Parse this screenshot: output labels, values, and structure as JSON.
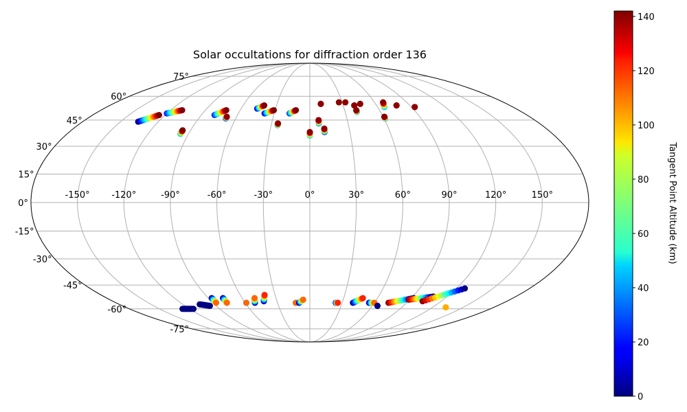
{
  "chart_data": {
    "type": "scatter",
    "projection": "mollweide",
    "title": "Solar occultations for diffraction order 136",
    "grid": true,
    "x_ticks": [
      "-150°",
      "-120°",
      "-90°",
      "-60°",
      "-30°",
      "0°",
      "30°",
      "60°",
      "90°",
      "120°",
      "150°"
    ],
    "y_ticks": [
      "75°",
      "60°",
      "45°",
      "30°",
      "15°",
      "0°",
      "-15°",
      "-30°",
      "-45°",
      "-60°",
      "-75°"
    ],
    "colorbar": {
      "label": "Tangent Point Altitude (km)",
      "range": [
        0,
        142
      ],
      "ticks": [
        "0",
        "20",
        "40",
        "60",
        "80",
        "100",
        "120",
        "140"
      ],
      "colormap": "jet"
    },
    "tracks": [
      {
        "lon0": -136,
        "lat0": 44,
        "lon1": -125,
        "lat1": 48,
        "alt0": 0,
        "alt1": 142
      },
      {
        "lon0": -120,
        "lat0": 49,
        "lon1": -110,
        "lat1": 51,
        "alt0": 20,
        "alt1": 142
      },
      {
        "lon0": -96,
        "lat0": 37,
        "lon1": -96,
        "lat1": 39,
        "alt0": 40,
        "alt1": 142
      },
      {
        "lon0": -79,
        "lat0": 48,
        "lon1": -72,
        "lat1": 51,
        "alt0": 20,
        "alt1": 142
      },
      {
        "lon0": -68,
        "lat0": 46,
        "lon1": -68,
        "lat1": 47,
        "alt0": 0,
        "alt1": 140
      },
      {
        "lon0": -46,
        "lat0": 52,
        "lon1": -41,
        "lat1": 54,
        "alt0": 10,
        "alt1": 142
      },
      {
        "lon0": -38,
        "lat0": 49,
        "lon1": -31,
        "lat1": 51,
        "alt0": 10,
        "alt1": 142
      },
      {
        "lon0": -25,
        "lat0": 42,
        "lon1": -25,
        "lat1": 43,
        "alt0": 30,
        "alt1": 140
      },
      {
        "lon0": -17,
        "lat0": 49,
        "lon1": -12,
        "lat1": 51,
        "alt0": 20,
        "alt1": 142
      },
      {
        "lon0": 0,
        "lat0": 36,
        "lon1": 0,
        "lat1": 38,
        "alt0": 40,
        "alt1": 140
      },
      {
        "lon0": 7,
        "lat0": 43,
        "lon1": 7,
        "lat1": 45,
        "alt0": 30,
        "alt1": 140
      },
      {
        "lon0": 11,
        "lat0": 38,
        "lon1": 11,
        "lat1": 40,
        "alt0": 20,
        "alt1": 140
      },
      {
        "lon0": 10,
        "lat0": 55,
        "lon1": 10,
        "lat1": 55,
        "alt0": 140,
        "alt1": 140
      },
      {
        "lon0": 27,
        "lat0": 56,
        "lon1": 27,
        "lat1": 56,
        "alt0": 30,
        "alt1": 140
      },
      {
        "lon0": 33,
        "lat0": 56,
        "lon1": 33,
        "lat1": 56,
        "alt0": 30,
        "alt1": 140
      },
      {
        "lon0": 40,
        "lat0": 50,
        "lon1": 40,
        "lat1": 51,
        "alt0": 30,
        "alt1": 140
      },
      {
        "lon0": 40,
        "lat0": 54,
        "lon1": 40,
        "lat1": 54,
        "alt0": 140,
        "alt1": 140
      },
      {
        "lon0": 46,
        "lat0": 55,
        "lon1": 46,
        "lat1": 55,
        "alt0": 140,
        "alt1": 140
      },
      {
        "lon0": 61,
        "lat0": 46,
        "lon1": 61,
        "lat1": 47,
        "alt0": 30,
        "alt1": 140
      },
      {
        "lon0": 66,
        "lat0": 53,
        "lon1": 68,
        "lat1": 56,
        "alt0": 40,
        "alt1": 140
      },
      {
        "lon0": 78,
        "lat0": 54,
        "lon1": 78,
        "lat1": 54,
        "alt0": 140,
        "alt1": 140
      },
      {
        "lon0": 93,
        "lat0": 53,
        "lon1": 93,
        "lat1": 53,
        "alt0": 140,
        "alt1": 140
      },
      {
        "lon0": -87,
        "lat0": -53,
        "lon1": -87,
        "lat1": -56,
        "alt0": 0,
        "alt1": 110
      },
      {
        "lon0": -77,
        "lat0": -53,
        "lon1": -77,
        "lat1": -56,
        "alt0": 0,
        "alt1": 110
      },
      {
        "lon0": -59,
        "lat0": -56,
        "lon1": -59,
        "lat1": -56,
        "alt0": 0,
        "alt1": 110
      },
      {
        "lon0": -51,
        "lat0": -56,
        "lon1": -49,
        "lat1": -53,
        "alt0": 0,
        "alt1": 110
      },
      {
        "lon0": -42,
        "lat0": -55,
        "lon1": -39,
        "lat1": -51,
        "alt0": 0,
        "alt1": 120
      },
      {
        "lon0": -13,
        "lat0": -56,
        "lon1": -13,
        "lat1": -56,
        "alt0": 0,
        "alt1": 110
      },
      {
        "lon0": -10,
        "lat0": -56,
        "lon1": -6,
        "lat1": -54,
        "alt0": 0,
        "alt1": 110
      },
      {
        "lon0": 24,
        "lat0": -56,
        "lon1": 26,
        "lat1": -56,
        "alt0": 0,
        "alt1": 120
      },
      {
        "lon0": 40,
        "lat0": -56,
        "lon1": 47,
        "lat1": -53,
        "alt0": 0,
        "alt1": 120
      },
      {
        "lon0": 55,
        "lat0": -56,
        "lon1": 60,
        "lat1": -56,
        "alt0": 0,
        "alt1": 110
      },
      {
        "lon0": 73,
        "lat0": -56,
        "lon1": 92,
        "lat1": -53,
        "alt0": 140,
        "alt1": 0
      },
      {
        "lon0": 89,
        "lat0": -54,
        "lon1": 108,
        "lat1": -52,
        "alt0": 140,
        "alt1": 0
      },
      {
        "lon0": 103,
        "lat0": -55,
        "lon1": 127,
        "lat1": -47,
        "alt0": 140,
        "alt1": 0
      },
      {
        "lon0": 133,
        "lat0": -59,
        "lon1": 133,
        "lat1": -59,
        "alt0": 100,
        "alt1": 100
      },
      {
        "lon0": -127,
        "lat0": -60,
        "lon1": -116,
        "lat1": -60,
        "alt0": 0,
        "alt1": 0
      },
      {
        "lon0": -104,
        "lat0": -57,
        "lon1": -96,
        "lat1": -58,
        "alt0": 0,
        "alt1": 0
      },
      {
        "lon0": 65,
        "lat0": -58,
        "lon1": 65,
        "lat1": -58,
        "alt0": 0,
        "alt1": 0
      }
    ]
  }
}
